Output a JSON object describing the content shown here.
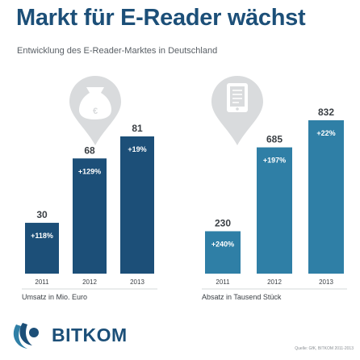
{
  "title": "Markt für E-Reader wächst",
  "subtitle": "Entwicklung des E-Reader-Marktes in Deutschland",
  "source": "Quelle: GfK, BITKOM 2011-2013",
  "logo_text": "BITKOM",
  "chart_data": [
    {
      "type": "bar",
      "xlabel": "Umsatz in Mio. Euro",
      "categories": [
        "2011",
        "2012",
        "2013"
      ],
      "values": [
        30,
        68,
        81
      ],
      "value_labels": [
        "30",
        "68",
        "81"
      ],
      "growth_labels": [
        "+118%",
        "+129%",
        "+19%"
      ],
      "icon": "money-bag-icon",
      "colors": [
        "#1c4f78",
        "#1c4f78",
        "#1c4f78"
      ]
    },
    {
      "type": "bar",
      "xlabel": "Absatz in Tausend Stück",
      "categories": [
        "2011",
        "2012",
        "2013"
      ],
      "values": [
        230,
        685,
        832
      ],
      "value_labels": [
        "230",
        "685",
        "832"
      ],
      "growth_labels": [
        "+240%",
        "+197%",
        "+22%"
      ],
      "icon": "e-reader-icon",
      "colors": [
        "#2f7fa6",
        "#2f7fa6",
        "#2f7fa6"
      ]
    }
  ]
}
